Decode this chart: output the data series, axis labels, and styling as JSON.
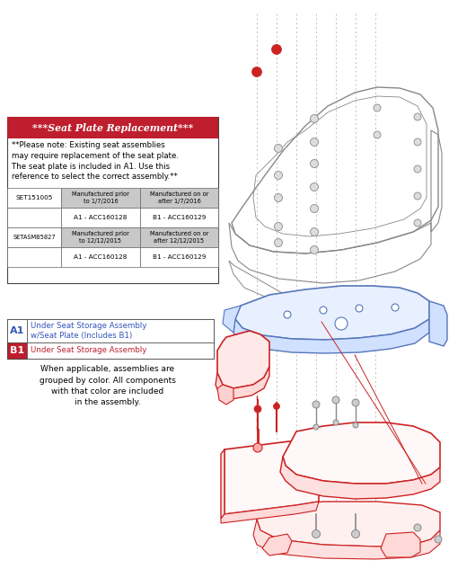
{
  "bg_color": "#ffffff",
  "red_header_bg": "#be1e2d",
  "red_header_text": "***Seat Plate Replacement***",
  "note_text": "**Please note: Existing seat assemblies\nmay require replacement of the seat plate.\nThe seat plate is included in A1. Use this\nreference to select the correct assembly.**",
  "table": {
    "row1_label": "SET151005",
    "row1_col1_header": "Manufactured prior\nto 1/7/2016",
    "row1_col2_header": "Manufactured on or\nafter 1/7/2016",
    "row1_col1_val": "A1 - ACC160128",
    "row1_col2_val": "B1 - ACC160129",
    "row2_label": "SETASMB5827",
    "row2_col1_header": "Manufactured prior\nto 12/12/2015",
    "row2_col2_header": "Manufactured on or\nafter 12/12/2015",
    "row2_col1_val": "A1 - ACC160128",
    "row2_col2_val": "B1 - ACC160129"
  },
  "legend": {
    "A1_label": "A1",
    "A1_text": "Under Seat Storage Assembly\nw/Seat Plate (Includes B1)",
    "A1_color": "#3355bb",
    "B1_label": "B1",
    "B1_text": "Under Seat Storage Assembly",
    "B1_color": "#be1e2d"
  },
  "footer_text": "When applicable, assemblies are\ngrouped by color. All components\nwith that color are included\nin the assembly.",
  "diagram_red": "#cc2222",
  "diagram_blue": "#5577bb",
  "diagram_gray": "#888888",
  "gray_bg": "#c8c8c8"
}
